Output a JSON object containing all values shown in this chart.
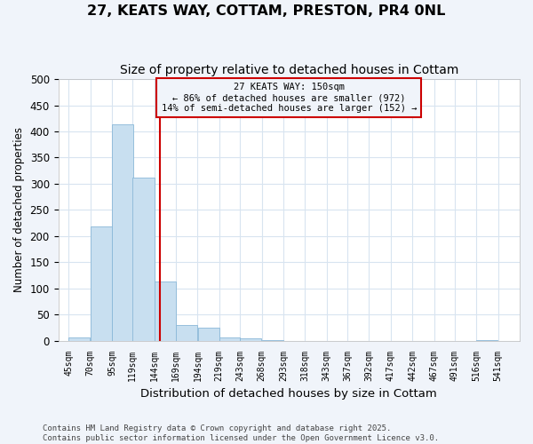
{
  "title": "27, KEATS WAY, COTTAM, PRESTON, PR4 0NL",
  "subtitle": "Size of property relative to detached houses in Cottam",
  "xlabel": "Distribution of detached houses by size in Cottam",
  "ylabel": "Number of detached properties",
  "footer_line1": "Contains HM Land Registry data © Crown copyright and database right 2025.",
  "footer_line2": "Contains public sector information licensed under the Open Government Licence v3.0.",
  "annotation_title": "27 KEATS WAY: 150sqm",
  "annotation_line1": "← 86% of detached houses are smaller (972)",
  "annotation_line2": "14% of semi-detached houses are larger (152) →",
  "bar_left_edges": [
    45,
    70,
    95,
    119,
    144,
    169,
    194,
    219,
    243,
    268,
    293,
    318,
    343,
    367,
    392,
    417,
    442,
    467,
    491,
    516
  ],
  "bar_widths": [
    25,
    25,
    25,
    25,
    25,
    25,
    25,
    24,
    25,
    25,
    25,
    25,
    24,
    25,
    25,
    25,
    25,
    24,
    25,
    25
  ],
  "bar_heights": [
    7,
    219,
    413,
    312,
    114,
    30,
    25,
    6,
    5,
    1,
    0,
    0,
    0,
    0,
    0,
    0,
    0,
    0,
    0,
    1
  ],
  "tick_labels": [
    "45sqm",
    "70sqm",
    "95sqm",
    "119sqm",
    "144sqm",
    "169sqm",
    "194sqm",
    "219sqm",
    "243sqm",
    "268sqm",
    "293sqm",
    "318sqm",
    "343sqm",
    "367sqm",
    "392sqm",
    "417sqm",
    "442sqm",
    "467sqm",
    "491sqm",
    "516sqm",
    "541sqm"
  ],
  "tick_positions": [
    45,
    70,
    95,
    119,
    144,
    169,
    194,
    219,
    243,
    268,
    293,
    318,
    343,
    367,
    392,
    417,
    442,
    467,
    491,
    516,
    541
  ],
  "bar_color": "#c8dff0",
  "bar_edge_color": "#8ab8d8",
  "vline_color": "#cc0000",
  "vline_x": 150,
  "annotation_box_color": "#cc0000",
  "background_color": "#f0f4fa",
  "plot_bg_color": "#ffffff",
  "grid_color": "#d8e4f0",
  "ylim": [
    0,
    500
  ],
  "yticks": [
    0,
    50,
    100,
    150,
    200,
    250,
    300,
    350,
    400,
    450,
    500
  ],
  "title_fontsize": 11.5,
  "subtitle_fontsize": 10,
  "xlabel_fontsize": 9.5,
  "ylabel_fontsize": 8.5,
  "tick_fontsize": 7,
  "annotation_fontsize": 7.5,
  "footer_fontsize": 6.5
}
